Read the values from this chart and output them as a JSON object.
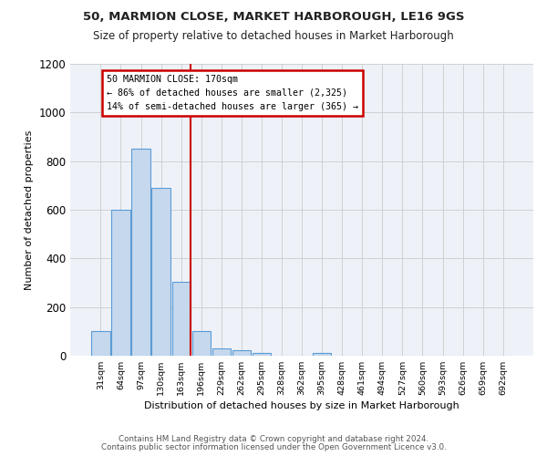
{
  "title1": "50, MARMION CLOSE, MARKET HARBOROUGH, LE16 9GS",
  "title2": "Size of property relative to detached houses in Market Harborough",
  "xlabel": "Distribution of detached houses by size in Market Harborough",
  "ylabel": "Number of detached properties",
  "bin_labels": [
    "31sqm",
    "64sqm",
    "97sqm",
    "130sqm",
    "163sqm",
    "196sqm",
    "229sqm",
    "262sqm",
    "295sqm",
    "328sqm",
    "362sqm",
    "395sqm",
    "428sqm",
    "461sqm",
    "494sqm",
    "527sqm",
    "560sqm",
    "593sqm",
    "626sqm",
    "659sqm",
    "692sqm"
  ],
  "bar_heights": [
    100,
    600,
    850,
    690,
    305,
    100,
    30,
    22,
    10,
    0,
    0,
    10,
    0,
    0,
    0,
    0,
    0,
    0,
    0,
    0,
    0
  ],
  "bar_color": "#c5d8ed",
  "bar_edgecolor": "#5b9bd5",
  "grid_color": "#d0d0d0",
  "ylim": [
    0,
    1200
  ],
  "yticks": [
    0,
    200,
    400,
    600,
    800,
    1000,
    1200
  ],
  "vline_x": 4.48,
  "vline_color": "#cc0000",
  "annotation_title": "50 MARMION CLOSE: 170sqm",
  "annotation_line1": "← 86% of detached houses are smaller (2,325)",
  "annotation_line2": "14% of semi-detached houses are larger (365) →",
  "annotation_box_color": "#ffffff",
  "annotation_box_edgecolor": "#cc0000",
  "footer1": "Contains HM Land Registry data © Crown copyright and database right 2024.",
  "footer2": "Contains public sector information licensed under the Open Government Licence v3.0.",
  "bg_color": "#ffffff",
  "plot_bg_color": "#eef2f8"
}
